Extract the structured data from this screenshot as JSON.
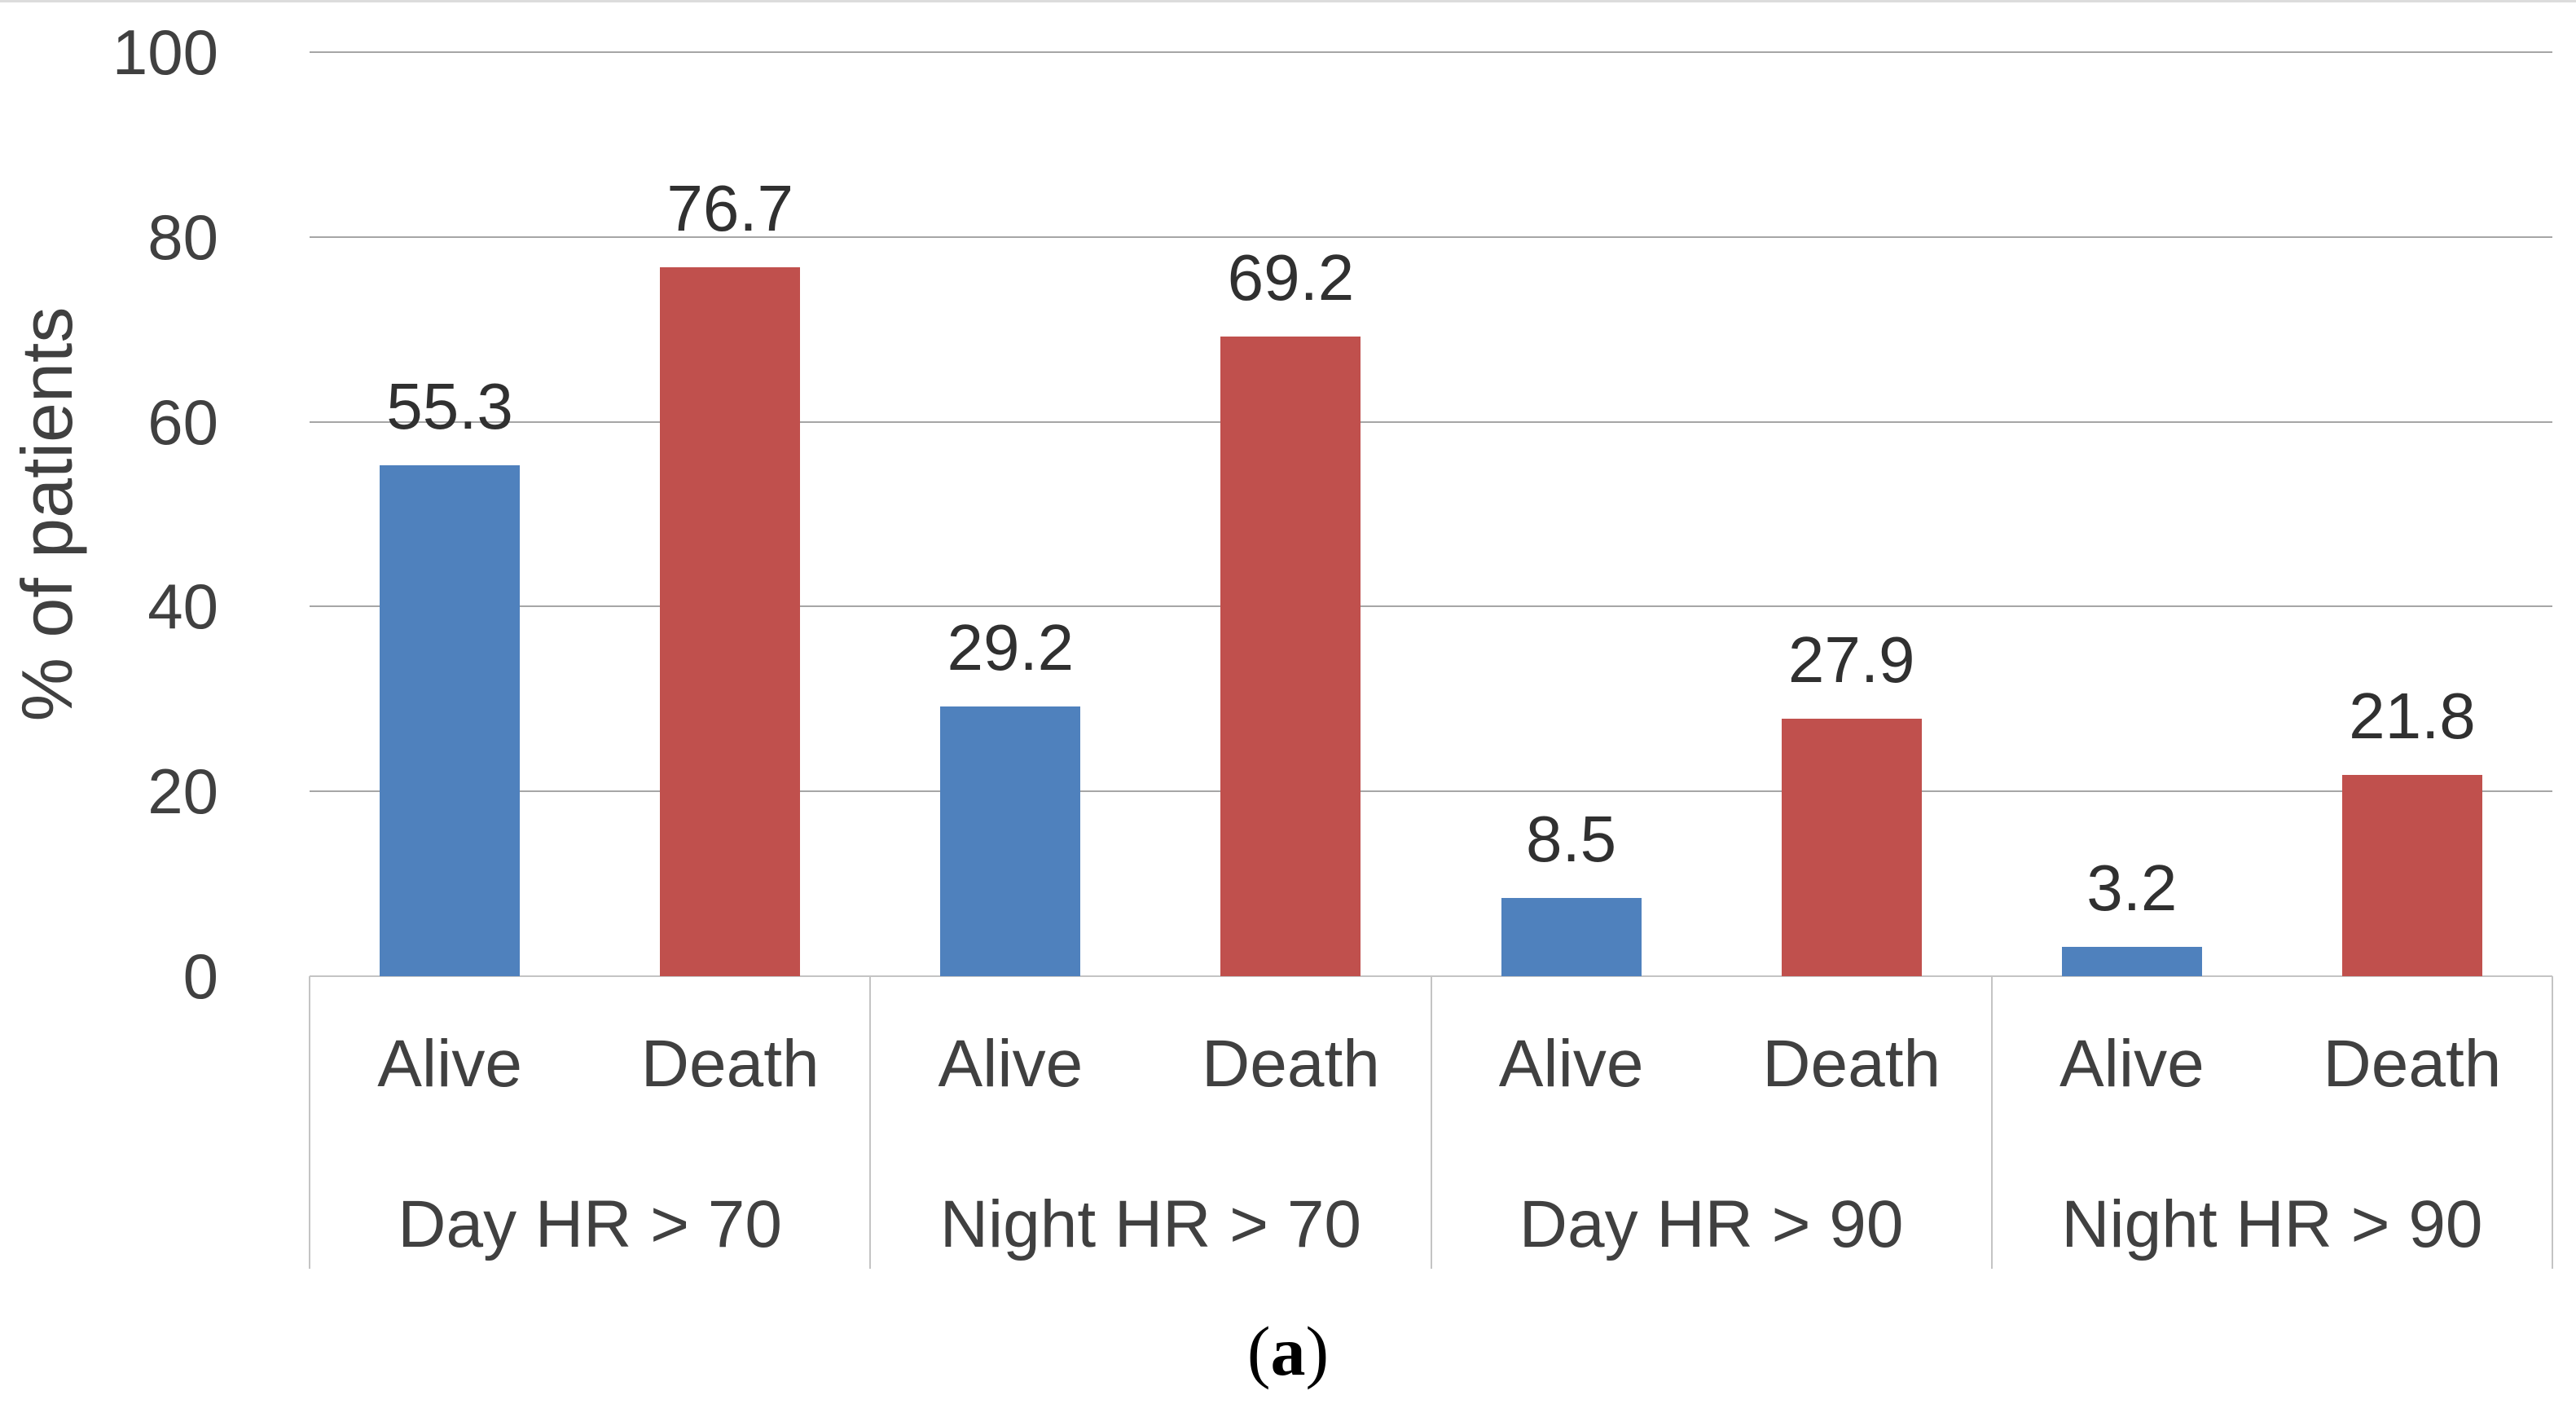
{
  "figure": {
    "caption": {
      "open": "(",
      "letter": "a",
      "close": ")"
    }
  },
  "chart_data": {
    "type": "bar",
    "title": "",
    "xlabel": "",
    "ylabel": "% of patients",
    "ylim": [
      0,
      100
    ],
    "yticks": [
      0,
      20,
      40,
      60,
      80,
      100
    ],
    "grid": true,
    "legend_position": "none",
    "value_labels_shown": true,
    "categories_level1": [
      "Alive",
      "Death"
    ],
    "groups": [
      {
        "label": "Day HR > 70",
        "categories": [
          "Alive",
          "Death"
        ],
        "values": [
          55.3,
          76.7
        ]
      },
      {
        "label": "Night HR > 70",
        "categories": [
          "Alive",
          "Death"
        ],
        "values": [
          29.2,
          69.2
        ]
      },
      {
        "label": "Day HR > 90",
        "categories": [
          "Alive",
          "Death"
        ],
        "values": [
          8.5,
          27.9
        ]
      },
      {
        "label": "Night HR > 90",
        "categories": [
          "Alive",
          "Death"
        ],
        "values": [
          3.2,
          21.8
        ]
      }
    ],
    "series": [
      {
        "name": "Alive",
        "values": [
          55.3,
          29.2,
          8.5,
          3.2
        ]
      },
      {
        "name": "Death",
        "values": [
          76.7,
          69.2,
          27.9,
          21.8
        ]
      }
    ],
    "colors": {
      "alive_bar": "#4F81BD",
      "death_bar": "#C0504D",
      "gridline": "#A6A6A6",
      "axis_box": "#C4C4C4",
      "text": "#404040"
    }
  }
}
